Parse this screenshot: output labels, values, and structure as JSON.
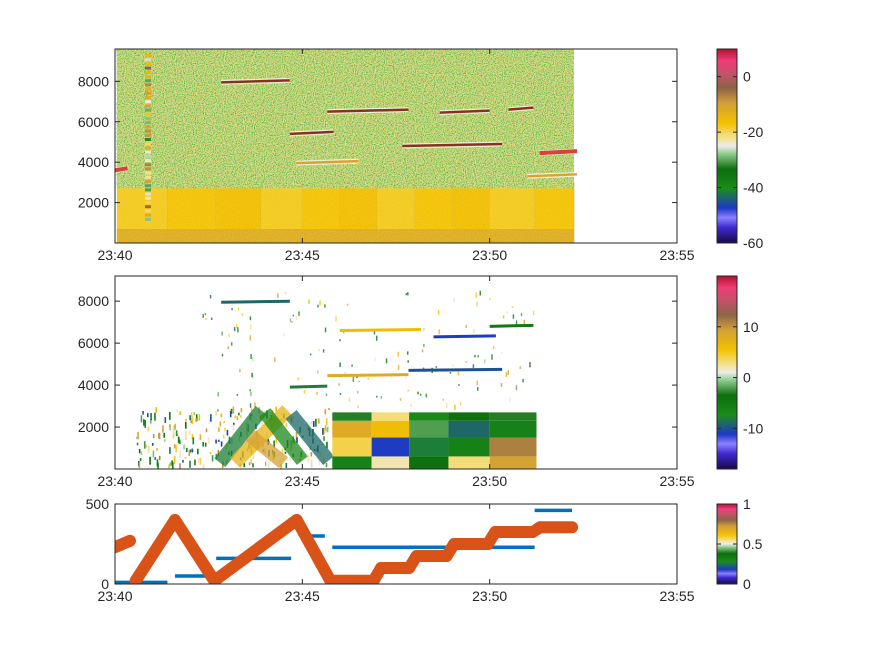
{
  "chart_data": [
    {
      "type": "heatmap",
      "title": "",
      "xlabel": "",
      "ylabel": "",
      "x_range": [
        "23:40",
        "23:55"
      ],
      "x_ticks": [
        "23:40",
        "23:45",
        "23:50",
        "23:55"
      ],
      "x_tick_minutes": [
        0,
        5,
        10,
        15
      ],
      "data_extent_minutes": [
        0.05,
        12.25
      ],
      "ylim": [
        0,
        9600
      ],
      "y_ticks": [
        2000,
        4000,
        6000,
        8000
      ],
      "colorbar": {
        "range": [
          -60,
          10
        ],
        "ticks": [
          -60,
          -40,
          -20,
          0
        ]
      },
      "noise_threshold_y": 2700,
      "features": [
        {
          "start": "23:42:50",
          "end": "23:44:40",
          "y": 7950,
          "level": "high"
        },
        {
          "start": "23:45:40",
          "end": "23:47:50",
          "y": 6500,
          "level": "high"
        },
        {
          "start": "23:48:40",
          "end": "23:50:00",
          "y": 6450,
          "level": "high"
        },
        {
          "start": "23:50:30",
          "end": "23:51:10",
          "y": 6600,
          "level": "high"
        },
        {
          "start": "23:44:40",
          "end": "23:45:50",
          "y": 5400,
          "level": "high"
        },
        {
          "start": "23:47:40",
          "end": "23:50:20",
          "y": 4800,
          "level": "high"
        },
        {
          "start": "23:51:20",
          "end": "23:52:20",
          "y": 4450,
          "level": "peak"
        },
        {
          "start": "23:44:50",
          "end": "23:46:30",
          "y": 3950,
          "level": "mid"
        },
        {
          "start": "23:51:00",
          "end": "23:52:20",
          "y": 3300,
          "level": "mid"
        },
        {
          "start": "23:40:00",
          "end": "23:40:20",
          "y": 3600,
          "level": "peak"
        }
      ],
      "segment_boundaries_minutes": [
        1.4,
        2.7,
        3.9,
        5.0,
        6.0,
        7.0,
        8.0,
        9.0,
        10.0,
        11.2,
        12.25
      ]
    },
    {
      "type": "heatmap",
      "title": "",
      "xlabel": "",
      "ylabel": "",
      "x_range": [
        "23:40",
        "23:55"
      ],
      "x_ticks": [
        "23:40",
        "23:45",
        "23:50",
        "23:55"
      ],
      "x_tick_minutes": [
        0,
        5,
        10,
        15
      ],
      "data_extent_minutes": [
        0.55,
        11.25
      ],
      "ylim": [
        0,
        9200
      ],
      "y_ticks": [
        2000,
        4000,
        6000,
        8000
      ],
      "colorbar": {
        "range": [
          -18,
          20
        ],
        "ticks": [
          -10,
          0,
          10
        ]
      },
      "segments": [
        {
          "start_min": 5.8,
          "end_min": 6.85,
          "bands": [
            [
              0,
              600,
              -6
            ],
            [
              600,
              1500,
              4
            ],
            [
              1500,
              2300,
              8
            ],
            [
              2300,
              2700,
              -3
            ]
          ]
        },
        {
          "start_min": 6.85,
          "end_min": 7.85,
          "bands": [
            [
              0,
              600,
              2
            ],
            [
              600,
              1500,
              -11
            ],
            [
              1500,
              2300,
              6
            ],
            [
              2300,
              2700,
              3
            ]
          ]
        },
        {
          "start_min": 7.85,
          "end_min": 8.9,
          "bands": [
            [
              0,
              600,
              -4
            ],
            [
              600,
              1500,
              -8
            ],
            [
              1500,
              2300,
              -2
            ],
            [
              2300,
              2700,
              -7
            ]
          ]
        },
        {
          "start_min": 8.9,
          "end_min": 10.0,
          "bands": [
            [
              0,
              600,
              3
            ],
            [
              600,
              1500,
              -6
            ],
            [
              1500,
              2300,
              -9
            ],
            [
              2300,
              2700,
              -4
            ]
          ]
        },
        {
          "start_min": 10.0,
          "end_min": 11.25,
          "bands": [
            [
              0,
              600,
              9
            ],
            [
              600,
              1500,
              11
            ],
            [
              1500,
              2300,
              -6
            ],
            [
              2300,
              2700,
              -3
            ]
          ]
        }
      ],
      "diagonal_bands": [
        {
          "x0": 2.8,
          "y0": 300,
          "x1": 3.9,
          "y1": 2800,
          "value": -8
        },
        {
          "x0": 3.2,
          "y0": 300,
          "x1": 4.6,
          "y1": 2800,
          "value": 7
        },
        {
          "x0": 4.0,
          "y0": 2700,
          "x1": 5.0,
          "y1": 400,
          "value": -7
        },
        {
          "x0": 4.7,
          "y0": 2600,
          "x1": 5.7,
          "y1": 400,
          "value": -9
        },
        {
          "x0": 3.6,
          "y0": 1600,
          "x1": 4.5,
          "y1": 300,
          "value": 9
        }
      ],
      "features": [
        {
          "start": "23:42:50",
          "end": "23:44:40",
          "y": 7950,
          "value": -9
        },
        {
          "start": "23:46:00",
          "end": "23:48:10",
          "y": 6600,
          "value": 6
        },
        {
          "start": "23:48:30",
          "end": "23:50:10",
          "y": 6300,
          "value": -11
        },
        {
          "start": "23:50:00",
          "end": "23:51:10",
          "y": 6800,
          "value": -5
        },
        {
          "start": "23:45:40",
          "end": "23:47:50",
          "y": 4450,
          "value": 8
        },
        {
          "start": "23:47:50",
          "end": "23:50:20",
          "y": 4700,
          "value": -10
        },
        {
          "start": "23:44:40",
          "end": "23:45:40",
          "y": 3900,
          "value": -8
        }
      ]
    },
    {
      "type": "scatter",
      "title": "",
      "xlabel": "",
      "ylabel": "",
      "x_range": [
        "23:40",
        "23:55"
      ],
      "x_ticks": [
        "23:40",
        "23:45",
        "23:50",
        "23:55"
      ],
      "x_tick_minutes": [
        0,
        5,
        10,
        15
      ],
      "ylim": [
        0,
        500
      ],
      "y_ticks": [
        0,
        500
      ],
      "colorbar": {
        "range": [
          0,
          1
        ],
        "ticks": [
          0,
          0.5,
          1
        ]
      },
      "series": [
        {
          "color": "#0072BD",
          "style": "horizontal segments",
          "segments": [
            {
              "x0": 0.0,
              "x1": 1.4,
              "y": 10
            },
            {
              "x0": 1.6,
              "x1": 2.6,
              "y": 50
            },
            {
              "x0": 2.7,
              "x1": 4.7,
              "y": 160
            },
            {
              "x0": 5.1,
              "x1": 5.6,
              "y": 300
            },
            {
              "x0": 5.8,
              "x1": 11.2,
              "y": 230
            },
            {
              "x0": 11.2,
              "x1": 12.2,
              "y": 460
            }
          ]
        },
        {
          "color": "#D95319",
          "style": "thick markers",
          "segments": [
            {
              "x0": 0.0,
              "x1": 0.4,
              "y0": 230,
              "y1": 270
            },
            {
              "x0": 0.55,
              "x1": 1.6,
              "y0": 20,
              "y1": 400
            },
            {
              "x0": 1.6,
              "x1": 2.65,
              "y0": 400,
              "y1": 20
            },
            {
              "x0": 2.65,
              "x1": 4.85,
              "y0": 20,
              "y1": 400
            },
            {
              "x0": 4.85,
              "x1": 5.75,
              "y0": 400,
              "y1": 20
            },
            {
              "x0": 5.75,
              "x1": 6.9,
              "y0": 20,
              "y1": 20
            },
            {
              "x0": 6.9,
              "x1": 7.1,
              "y0": 20,
              "y1": 100
            },
            {
              "x0": 7.1,
              "x1": 7.85,
              "y0": 100,
              "y1": 100
            },
            {
              "x0": 7.85,
              "x1": 8.05,
              "y0": 100,
              "y1": 175
            },
            {
              "x0": 8.05,
              "x1": 8.85,
              "y0": 175,
              "y1": 175
            },
            {
              "x0": 8.85,
              "x1": 9.05,
              "y0": 175,
              "y1": 250
            },
            {
              "x0": 9.05,
              "x1": 9.95,
              "y0": 250,
              "y1": 250
            },
            {
              "x0": 9.95,
              "x1": 10.15,
              "y0": 250,
              "y1": 325
            },
            {
              "x0": 10.15,
              "x1": 11.15,
              "y0": 325,
              "y1": 325
            },
            {
              "x0": 11.15,
              "x1": 11.35,
              "y0": 325,
              "y1": 355
            },
            {
              "x0": 11.35,
              "x1": 12.2,
              "y0": 355,
              "y1": 355
            }
          ]
        }
      ]
    }
  ]
}
